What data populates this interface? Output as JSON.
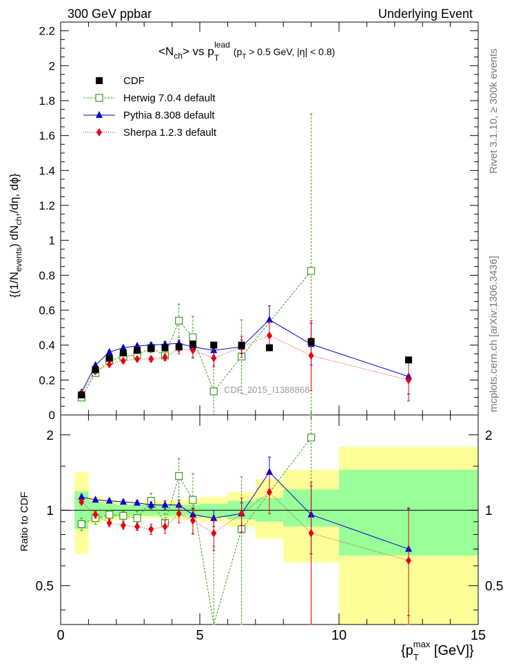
{
  "header": {
    "left": "300 GeV ppbar",
    "right": "Underlying Event"
  },
  "side_labels": {
    "rivet": "Rivet 3.1.10, ≥ 300k events",
    "mcplots": "mcplots.cern.ch [arXiv:1306.3436]"
  },
  "chart_data": [
    {
      "type": "scatter",
      "panel": "main",
      "title_main": "<N",
      "title_sub_ch": "ch",
      "title_mid": "> vs p",
      "title_sub_T": "T",
      "title_sup_lead": "lead",
      "title_cut": "(p",
      "title_cut_rest": " > 0.5 GeV, |η| < 0.8)",
      "ylabel": "{(1/N",
      "ylabel_sub": "events",
      "ylabel_rest": ") dN",
      "ylabel_sub2": "ch",
      "ylabel_end": ",/dη, dϕ}",
      "watermark": "CDF_2015_I1388868",
      "xlim": [
        0,
        15
      ],
      "ylim": [
        0,
        2.25
      ],
      "yticks": [
        "0",
        "0.2",
        "0.4",
        "0.6",
        "0.8",
        "1",
        "1.2",
        "1.4",
        "1.6",
        "1.8",
        "2",
        "2.2"
      ],
      "legend_position": "top-left",
      "series": [
        {
          "name": "CDF",
          "color": "#000000",
          "marker": "filled-square",
          "x": [
            0.75,
            1.25,
            1.75,
            2.25,
            2.75,
            3.25,
            3.75,
            4.25,
            4.75,
            5.5,
            6.5,
            7.5,
            9.0,
            12.5
          ],
          "y": [
            0.115,
            0.26,
            0.325,
            0.355,
            0.37,
            0.38,
            0.385,
            0.39,
            0.405,
            0.4,
            0.4,
            0.385,
            0.42,
            0.315
          ],
          "err": [
            0.01,
            0.01,
            0.01,
            0.01,
            0.01,
            0.01,
            0.01,
            0.01,
            0.01,
            0.01,
            0.01,
            0.01,
            0.02,
            0.01
          ]
        },
        {
          "name": "Herwig 7.0.4 default",
          "color": "#3c9a1e",
          "marker": "open-square",
          "line": "dashed",
          "x": [
            0.75,
            1.25,
            1.75,
            2.25,
            2.75,
            3.25,
            3.75,
            4.25,
            4.75,
            5.5,
            6.5,
            9.0
          ],
          "y": [
            0.1,
            0.24,
            0.31,
            0.335,
            0.345,
            0.385,
            0.34,
            0.54,
            0.445,
            0.135,
            0.335,
            0.825
          ],
          "err": [
            0.01,
            0.02,
            0.02,
            0.02,
            0.025,
            0.03,
            0.03,
            0.095,
            0.12,
            0.15,
            0.21,
            0.9
          ]
        },
        {
          "name": "Pythia 8.308 default",
          "color": "#0000cc",
          "marker": "filled-triangle",
          "line": "solid",
          "x": [
            0.75,
            1.25,
            1.75,
            2.25,
            2.75,
            3.25,
            3.75,
            4.25,
            4.75,
            5.5,
            6.5,
            7.5,
            9.0,
            12.5
          ],
          "y": [
            0.13,
            0.285,
            0.36,
            0.385,
            0.395,
            0.4,
            0.405,
            0.41,
            0.39,
            0.37,
            0.39,
            0.545,
            0.405,
            0.22
          ],
          "err": [
            0.005,
            0.01,
            0.01,
            0.01,
            0.01,
            0.012,
            0.015,
            0.02,
            0.025,
            0.03,
            0.04,
            0.08,
            0.12,
            0.1
          ]
        },
        {
          "name": "Sherpa 1.2.3 default",
          "color": "#e8000b",
          "marker": "filled-diamond",
          "line": "dotted",
          "x": [
            0.75,
            1.25,
            1.75,
            2.25,
            2.75,
            3.25,
            3.75,
            4.25,
            4.75,
            5.5,
            6.5,
            7.5,
            9.0,
            12.5
          ],
          "y": [
            0.125,
            0.25,
            0.29,
            0.31,
            0.32,
            0.32,
            0.33,
            0.38,
            0.37,
            0.325,
            0.39,
            0.455,
            0.34,
            0.2
          ],
          "err": [
            0.005,
            0.01,
            0.01,
            0.012,
            0.012,
            0.015,
            0.02,
            0.03,
            0.04,
            0.05,
            0.06,
            0.08,
            0.2,
            0.12
          ]
        }
      ]
    },
    {
      "type": "scatter",
      "panel": "ratio",
      "ylabel": "Ratio to CDF",
      "xlabel": "{p",
      "xlabel_sub": "T",
      "xlabel_sup": "max",
      "xlabel_rest": " [GeV]}",
      "xlim": [
        0,
        15
      ],
      "ylim": [
        0.35,
        2.4
      ],
      "log_y": true,
      "yticks_left": [
        "0.5",
        "1",
        "2"
      ],
      "yticks_right": [
        "0.5",
        "1",
        "2"
      ],
      "xticks": [
        "0",
        "5",
        "10",
        "15"
      ],
      "bands": {
        "colors": {
          "inner": "#99ff99",
          "outer": "#ffff99"
        },
        "bins": [
          {
            "lo": 0.5,
            "hi": 1.0,
            "inner": [
              0.84,
              1.19
            ],
            "outer": [
              0.67,
              1.42
            ]
          },
          {
            "lo": 1.0,
            "hi": 1.5,
            "inner": [
              0.92,
              1.08
            ],
            "outer": [
              0.88,
              1.14
            ]
          },
          {
            "lo": 1.5,
            "hi": 2.0,
            "inner": [
              0.94,
              1.06
            ],
            "outer": [
              0.91,
              1.1
            ]
          },
          {
            "lo": 2.0,
            "hi": 2.5,
            "inner": [
              0.95,
              1.05
            ],
            "outer": [
              0.92,
              1.08
            ]
          },
          {
            "lo": 2.5,
            "hi": 3.0,
            "inner": [
              0.95,
              1.05
            ],
            "outer": [
              0.93,
              1.07
            ]
          },
          {
            "lo": 3.0,
            "hi": 3.5,
            "inner": [
              0.95,
              1.05
            ],
            "outer": [
              0.93,
              1.08
            ]
          },
          {
            "lo": 3.5,
            "hi": 4.0,
            "inner": [
              0.95,
              1.05
            ],
            "outer": [
              0.93,
              1.09
            ]
          },
          {
            "lo": 4.0,
            "hi": 4.5,
            "inner": [
              0.95,
              1.05
            ],
            "outer": [
              0.92,
              1.1
            ]
          },
          {
            "lo": 4.5,
            "hi": 5.0,
            "inner": [
              0.95,
              1.05
            ],
            "outer": [
              0.92,
              1.11
            ]
          },
          {
            "lo": 5.0,
            "hi": 6.0,
            "inner": [
              0.94,
              1.06
            ],
            "outer": [
              0.9,
              1.13
            ]
          },
          {
            "lo": 6.0,
            "hi": 7.0,
            "inner": [
              0.92,
              1.09
            ],
            "outer": [
              0.86,
              1.18
            ]
          },
          {
            "lo": 7.0,
            "hi": 8.0,
            "inner": [
              0.9,
              1.12
            ],
            "outer": [
              0.77,
              1.33
            ]
          },
          {
            "lo": 8.0,
            "hi": 10.0,
            "inner": [
              0.86,
              1.21
            ],
            "outer": [
              0.62,
              1.45
            ]
          },
          {
            "lo": 10.0,
            "hi": 15.0,
            "inner": [
              0.66,
              1.45
            ],
            "outer": [
              0.3,
              1.79
            ]
          }
        ]
      },
      "series": [
        {
          "name": "Herwig 7.0.4 default",
          "y": [
            0.88,
            0.93,
            0.96,
            0.95,
            0.93,
            1.09,
            0.89,
            1.37,
            1.1,
            0.34,
            0.84,
            1.95
          ],
          "err": [
            0.05,
            0.05,
            0.04,
            0.04,
            0.06,
            0.08,
            0.08,
            0.24,
            0.3,
            0.38,
            0.52,
            2.1
          ]
        },
        {
          "name": "Pythia 8.308 default",
          "y": [
            1.13,
            1.1,
            1.09,
            1.08,
            1.07,
            1.05,
            1.05,
            1.05,
            0.96,
            0.93,
            0.97,
            1.42,
            0.96,
            0.7
          ],
          "err": [
            0.02,
            0.02,
            0.02,
            0.02,
            0.02,
            0.03,
            0.04,
            0.05,
            0.06,
            0.07,
            0.1,
            0.21,
            0.29,
            0.32
          ]
        },
        {
          "name": "Sherpa 1.2.3 default",
          "y": [
            1.08,
            0.96,
            0.89,
            0.87,
            0.86,
            0.84,
            0.86,
            0.97,
            0.91,
            0.81,
            0.97,
            1.18,
            0.81,
            0.63
          ],
          "err": [
            0.02,
            0.03,
            0.03,
            0.03,
            0.03,
            0.04,
            0.05,
            0.08,
            0.1,
            0.12,
            0.15,
            0.21,
            0.48,
            0.38
          ]
        }
      ]
    }
  ]
}
